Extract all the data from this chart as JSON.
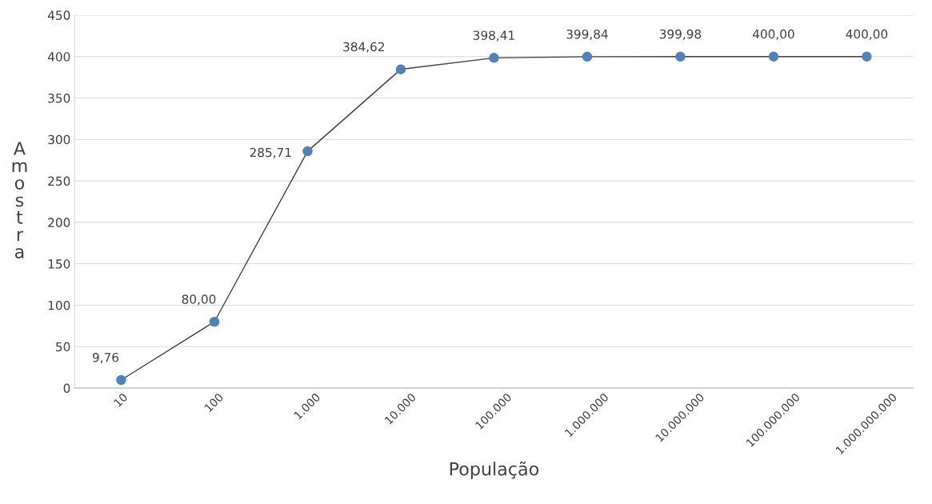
{
  "chart_data": {
    "type": "line",
    "xlabel": "População",
    "ylabel": "Amostra",
    "categories": [
      "10",
      "100",
      "1.000",
      "10.000",
      "100.000",
      "1.000.000",
      "10.000.000",
      "100.000.000",
      "1.000.000.000"
    ],
    "series": [
      {
        "color": "#4f81bd",
        "values": [
          9.76,
          80.0,
          285.71,
          384.62,
          398.41,
          399.84,
          399.98,
          400.0,
          400.0
        ],
        "value_labels": [
          "9,76",
          "80,00",
          "285,71",
          "384,62",
          "398,41",
          "399,84",
          "399,98",
          "400,00",
          "400,00"
        ]
      }
    ],
    "ylim": [
      0,
      450
    ],
    "yticks": [
      0,
      50,
      100,
      150,
      200,
      250,
      300,
      350,
      400,
      450
    ],
    "grid": "y",
    "marker": "circle",
    "line_style": "solid"
  }
}
